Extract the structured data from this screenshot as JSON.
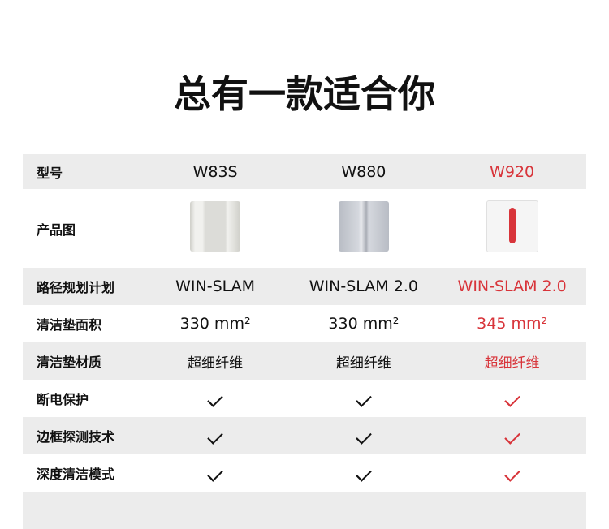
{
  "title": "总有一款适合你",
  "accent": "#d8343a",
  "models": [
    "W83S",
    "W880",
    "W920"
  ],
  "rows": [
    {
      "label": "型号",
      "values": [
        "W83S",
        "W880",
        "W920"
      ]
    },
    {
      "label": "产品图"
    },
    {
      "label": "路径规划计划",
      "values": [
        "WIN-SLAM",
        "WIN-SLAM 2.0",
        "WIN-SLAM 2.0"
      ]
    },
    {
      "label": "清洁垫面积",
      "values": [
        "330 mm²",
        "330 mm²",
        "345 mm²"
      ]
    },
    {
      "label": "清洁垫材质",
      "values": [
        "超细纤维",
        "超细纤维",
        "超细纤维"
      ]
    },
    {
      "label": "断电保护",
      "values": [
        "check",
        "check",
        "check"
      ]
    },
    {
      "label": "边框探测技术",
      "values": [
        "check",
        "check",
        "check"
      ]
    },
    {
      "label": "深度清洁模式",
      "values": [
        "check",
        "check",
        "check"
      ]
    }
  ]
}
